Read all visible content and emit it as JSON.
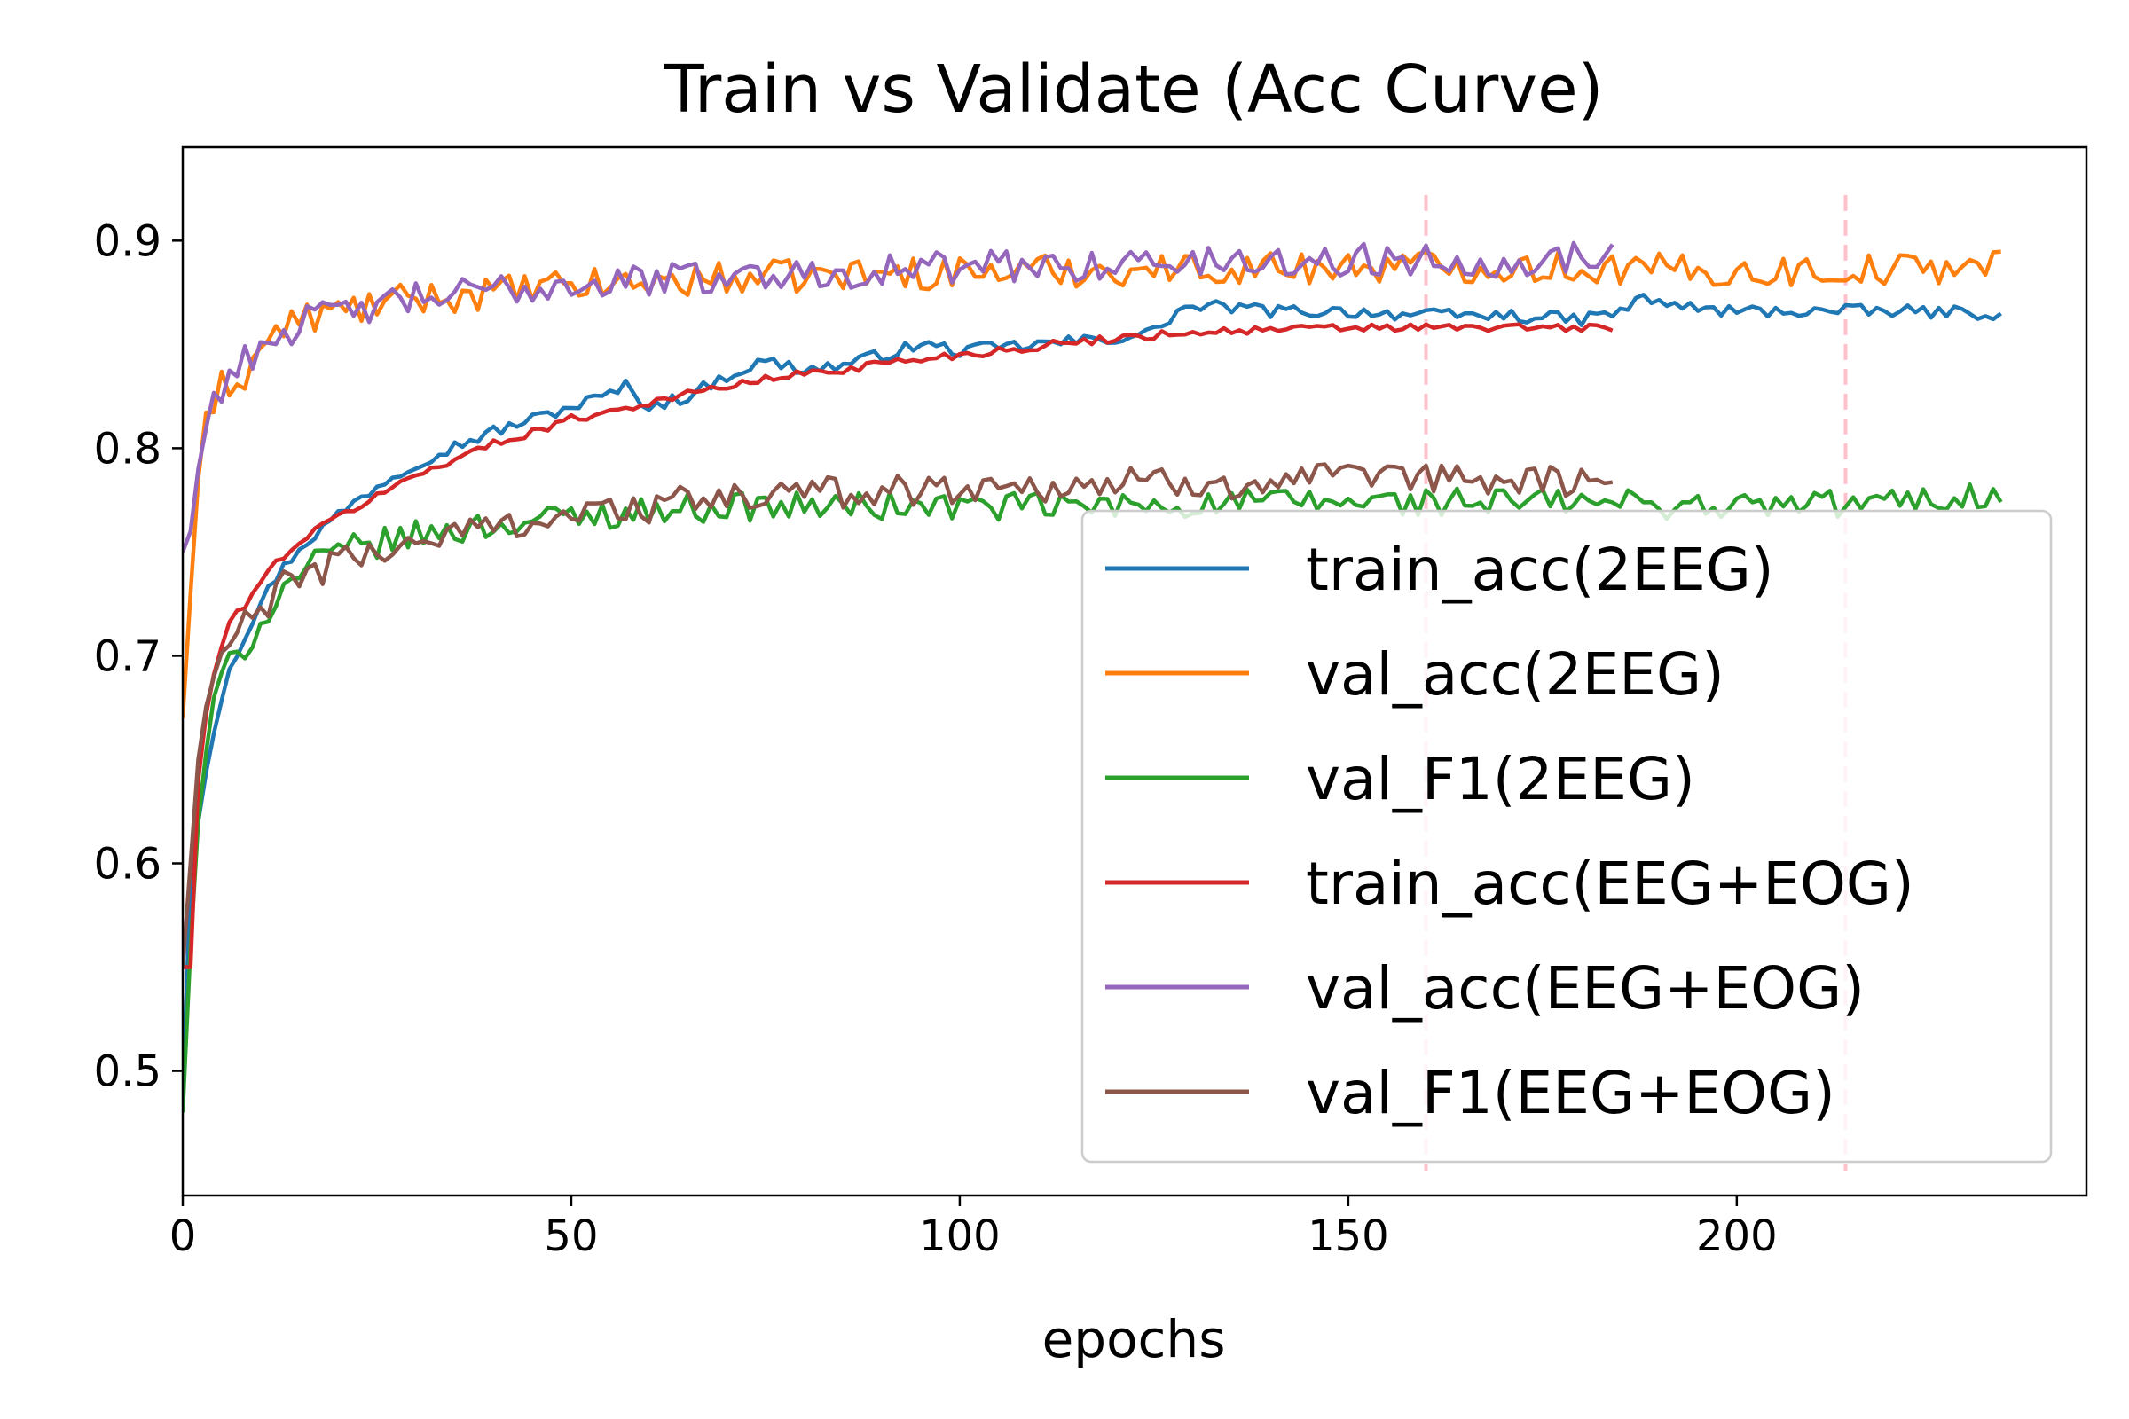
{
  "chart_data": {
    "type": "line",
    "title": "Train vs Validate (Acc Curve)",
    "xlabel": "epochs",
    "ylabel": "",
    "xlim": [
      0,
      245
    ],
    "ylim": [
      0.44,
      0.945
    ],
    "xticks": [
      0,
      50,
      100,
      150,
      200
    ],
    "yticks": [
      0.5,
      0.6,
      0.7,
      0.8,
      0.9
    ],
    "xtick_labels": [
      "0",
      "50",
      "100",
      "150",
      "200"
    ],
    "ytick_labels": [
      "0.5",
      "0.6",
      "0.7",
      "0.8",
      "0.9"
    ],
    "vlines": [
      160,
      214
    ],
    "vline_color": "#ffc0cb",
    "grid": false,
    "legend_position": "lower right",
    "series": [
      {
        "name": "train_acc(2EEG)",
        "color": "#1f77b4",
        "length": 235,
        "noise": 0.003,
        "anchors": [
          [
            0,
            0.49
          ],
          [
            1,
            0.59
          ],
          [
            2,
            0.62
          ],
          [
            3,
            0.645
          ],
          [
            4,
            0.665
          ],
          [
            5,
            0.68
          ],
          [
            6,
            0.695
          ],
          [
            8,
            0.71
          ],
          [
            10,
            0.725
          ],
          [
            12,
            0.738
          ],
          [
            15,
            0.752
          ],
          [
            20,
            0.768
          ],
          [
            25,
            0.782
          ],
          [
            30,
            0.793
          ],
          [
            35,
            0.801
          ],
          [
            40,
            0.808
          ],
          [
            45,
            0.814
          ],
          [
            50,
            0.82
          ],
          [
            55,
            0.826
          ],
          [
            57,
            0.83
          ],
          [
            60,
            0.82
          ],
          [
            65,
            0.825
          ],
          [
            70,
            0.835
          ],
          [
            75,
            0.842
          ],
          [
            80,
            0.838
          ],
          [
            85,
            0.84
          ],
          [
            90,
            0.845
          ],
          [
            95,
            0.85
          ],
          [
            100,
            0.847
          ],
          [
            110,
            0.85
          ],
          [
            120,
            0.853
          ],
          [
            125,
            0.856
          ],
          [
            128,
            0.866
          ],
          [
            130,
            0.868
          ],
          [
            135,
            0.868
          ],
          [
            140,
            0.866
          ],
          [
            150,
            0.866
          ],
          [
            160,
            0.864
          ],
          [
            170,
            0.864
          ],
          [
            180,
            0.862
          ],
          [
            185,
            0.866
          ],
          [
            188,
            0.872
          ],
          [
            195,
            0.867
          ],
          [
            200,
            0.866
          ],
          [
            210,
            0.866
          ],
          [
            220,
            0.866
          ],
          [
            234,
            0.865
          ]
        ]
      },
      {
        "name": "val_acc(2EEG)",
        "color": "#ff7f0e",
        "length": 235,
        "noise": 0.008,
        "anchors": [
          [
            0,
            0.67
          ],
          [
            1,
            0.73
          ],
          [
            2,
            0.785
          ],
          [
            3,
            0.82
          ],
          [
            4,
            0.81
          ],
          [
            5,
            0.83
          ],
          [
            8,
            0.835
          ],
          [
            10,
            0.848
          ],
          [
            12,
            0.856
          ],
          [
            15,
            0.862
          ],
          [
            20,
            0.866
          ],
          [
            30,
            0.872
          ],
          [
            40,
            0.875
          ],
          [
            50,
            0.878
          ],
          [
            60,
            0.88
          ],
          [
            70,
            0.882
          ],
          [
            80,
            0.883
          ],
          [
            90,
            0.884
          ],
          [
            100,
            0.885
          ],
          [
            120,
            0.886
          ],
          [
            140,
            0.887
          ],
          [
            160,
            0.888
          ],
          [
            180,
            0.887
          ],
          [
            200,
            0.885
          ],
          [
            220,
            0.886
          ],
          [
            234,
            0.889
          ]
        ]
      },
      {
        "name": "val_F1(2EEG)",
        "color": "#2ca02c",
        "length": 235,
        "noise": 0.007,
        "anchors": [
          [
            0,
            0.48
          ],
          [
            1,
            0.56
          ],
          [
            2,
            0.62
          ],
          [
            3,
            0.655
          ],
          [
            4,
            0.675
          ],
          [
            5,
            0.69
          ],
          [
            6,
            0.695
          ],
          [
            8,
            0.705
          ],
          [
            10,
            0.715
          ],
          [
            12,
            0.728
          ],
          [
            15,
            0.74
          ],
          [
            20,
            0.75
          ],
          [
            30,
            0.758
          ],
          [
            40,
            0.763
          ],
          [
            50,
            0.767
          ],
          [
            60,
            0.77
          ],
          [
            70,
            0.772
          ],
          [
            80,
            0.772
          ],
          [
            90,
            0.772
          ],
          [
            100,
            0.772
          ],
          [
            120,
            0.772
          ],
          [
            140,
            0.774
          ],
          [
            160,
            0.774
          ],
          [
            180,
            0.774
          ],
          [
            200,
            0.772
          ],
          [
            220,
            0.774
          ],
          [
            234,
            0.778
          ]
        ]
      },
      {
        "name": "train_acc(EEG+EOG)",
        "color": "#d62728",
        "length": 185,
        "noise": 0.002,
        "anchors": [
          [
            0,
            0.55
          ],
          [
            1,
            0.55
          ],
          [
            2,
            0.64
          ],
          [
            3,
            0.672
          ],
          [
            4,
            0.69
          ],
          [
            5,
            0.705
          ],
          [
            6,
            0.715
          ],
          [
            8,
            0.725
          ],
          [
            10,
            0.735
          ],
          [
            12,
            0.745
          ],
          [
            15,
            0.755
          ],
          [
            20,
            0.767
          ],
          [
            25,
            0.777
          ],
          [
            30,
            0.787
          ],
          [
            35,
            0.795
          ],
          [
            40,
            0.802
          ],
          [
            45,
            0.808
          ],
          [
            50,
            0.814
          ],
          [
            55,
            0.818
          ],
          [
            60,
            0.822
          ],
          [
            65,
            0.826
          ],
          [
            70,
            0.83
          ],
          [
            75,
            0.833
          ],
          [
            80,
            0.836
          ],
          [
            85,
            0.838
          ],
          [
            90,
            0.841
          ],
          [
            95,
            0.843
          ],
          [
            100,
            0.845
          ],
          [
            110,
            0.849
          ],
          [
            120,
            0.853
          ],
          [
            130,
            0.856
          ],
          [
            140,
            0.857
          ],
          [
            150,
            0.858
          ],
          [
            160,
            0.858
          ],
          [
            170,
            0.858
          ],
          [
            184,
            0.858
          ]
        ]
      },
      {
        "name": "val_acc(EEG+EOG)",
        "color": "#9467bd",
        "length": 185,
        "noise": 0.008,
        "anchors": [
          [
            0,
            0.75
          ],
          [
            1,
            0.76
          ],
          [
            2,
            0.79
          ],
          [
            3,
            0.81
          ],
          [
            4,
            0.825
          ],
          [
            5,
            0.83
          ],
          [
            6,
            0.835
          ],
          [
            8,
            0.842
          ],
          [
            10,
            0.85
          ],
          [
            15,
            0.86
          ],
          [
            20,
            0.865
          ],
          [
            30,
            0.872
          ],
          [
            40,
            0.876
          ],
          [
            50,
            0.879
          ],
          [
            60,
            0.881
          ],
          [
            70,
            0.883
          ],
          [
            80,
            0.884
          ],
          [
            90,
            0.886
          ],
          [
            100,
            0.887
          ],
          [
            120,
            0.889
          ],
          [
            140,
            0.89
          ],
          [
            160,
            0.891
          ],
          [
            170,
            0.89
          ],
          [
            184,
            0.893
          ]
        ]
      },
      {
        "name": "val_F1(EEG+EOG)",
        "color": "#8c564b",
        "length": 185,
        "noise": 0.008,
        "anchors": [
          [
            0,
            0.55
          ],
          [
            1,
            0.6
          ],
          [
            2,
            0.65
          ],
          [
            3,
            0.675
          ],
          [
            4,
            0.69
          ],
          [
            5,
            0.698
          ],
          [
            6,
            0.705
          ],
          [
            8,
            0.715
          ],
          [
            10,
            0.722
          ],
          [
            12,
            0.73
          ],
          [
            15,
            0.738
          ],
          [
            20,
            0.745
          ],
          [
            30,
            0.755
          ],
          [
            40,
            0.763
          ],
          [
            50,
            0.768
          ],
          [
            60,
            0.772
          ],
          [
            70,
            0.776
          ],
          [
            80,
            0.778
          ],
          [
            90,
            0.78
          ],
          [
            100,
            0.781
          ],
          [
            120,
            0.783
          ],
          [
            140,
            0.784
          ],
          [
            160,
            0.785
          ],
          [
            170,
            0.785
          ],
          [
            184,
            0.784
          ]
        ]
      }
    ]
  }
}
